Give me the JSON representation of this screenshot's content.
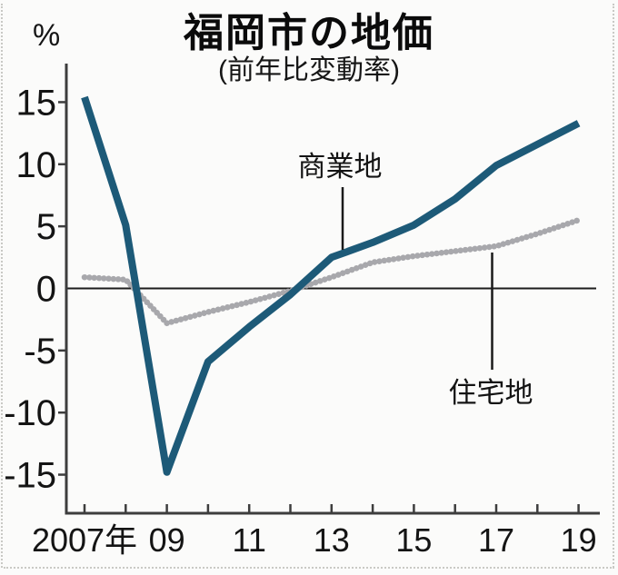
{
  "chart_data": {
    "type": "line",
    "title": "福岡市の地価",
    "subtitle": "(前年比変動率)",
    "unit": "%",
    "x_years": [
      2007,
      2008,
      2009,
      2010,
      2011,
      2012,
      2013,
      2014,
      2015,
      2016,
      2017,
      2018,
      2019
    ],
    "xticks": [
      {
        "year": 2007,
        "label": "2007年"
      },
      {
        "year": 2009,
        "label": "09"
      },
      {
        "year": 2011,
        "label": "11"
      },
      {
        "year": 2013,
        "label": "13"
      },
      {
        "year": 2015,
        "label": "15"
      },
      {
        "year": 2017,
        "label": "17"
      },
      {
        "year": 2019,
        "label": "19"
      }
    ],
    "yticks": [
      15,
      10,
      5,
      0,
      -5,
      -10,
      -15
    ],
    "ylim": [
      -17,
      17
    ],
    "zero_line": true,
    "legend_position": "inline-annotations",
    "grid": false,
    "series": [
      {
        "key": "residential",
        "name": "住宅地",
        "color": "#a8a8ac",
        "style": "dotted",
        "values": [
          0.9,
          0.7,
          -2.8,
          -1.9,
          -1.1,
          -0.2,
          0.9,
          2.1,
          2.6,
          3.0,
          3.4,
          4.4,
          5.5
        ]
      },
      {
        "key": "commercial",
        "name": "商業地",
        "color": "#1d5a78",
        "style": "solid",
        "values": [
          15.4,
          5.1,
          -14.8,
          -5.9,
          -3.1,
          -0.5,
          2.5,
          3.7,
          5.1,
          7.2,
          9.9,
          11.6,
          13.3
        ]
      }
    ],
    "annotations": [
      {
        "key": "commercial",
        "label": "商業地"
      },
      {
        "key": "residential",
        "label": "住宅地"
      }
    ]
  }
}
